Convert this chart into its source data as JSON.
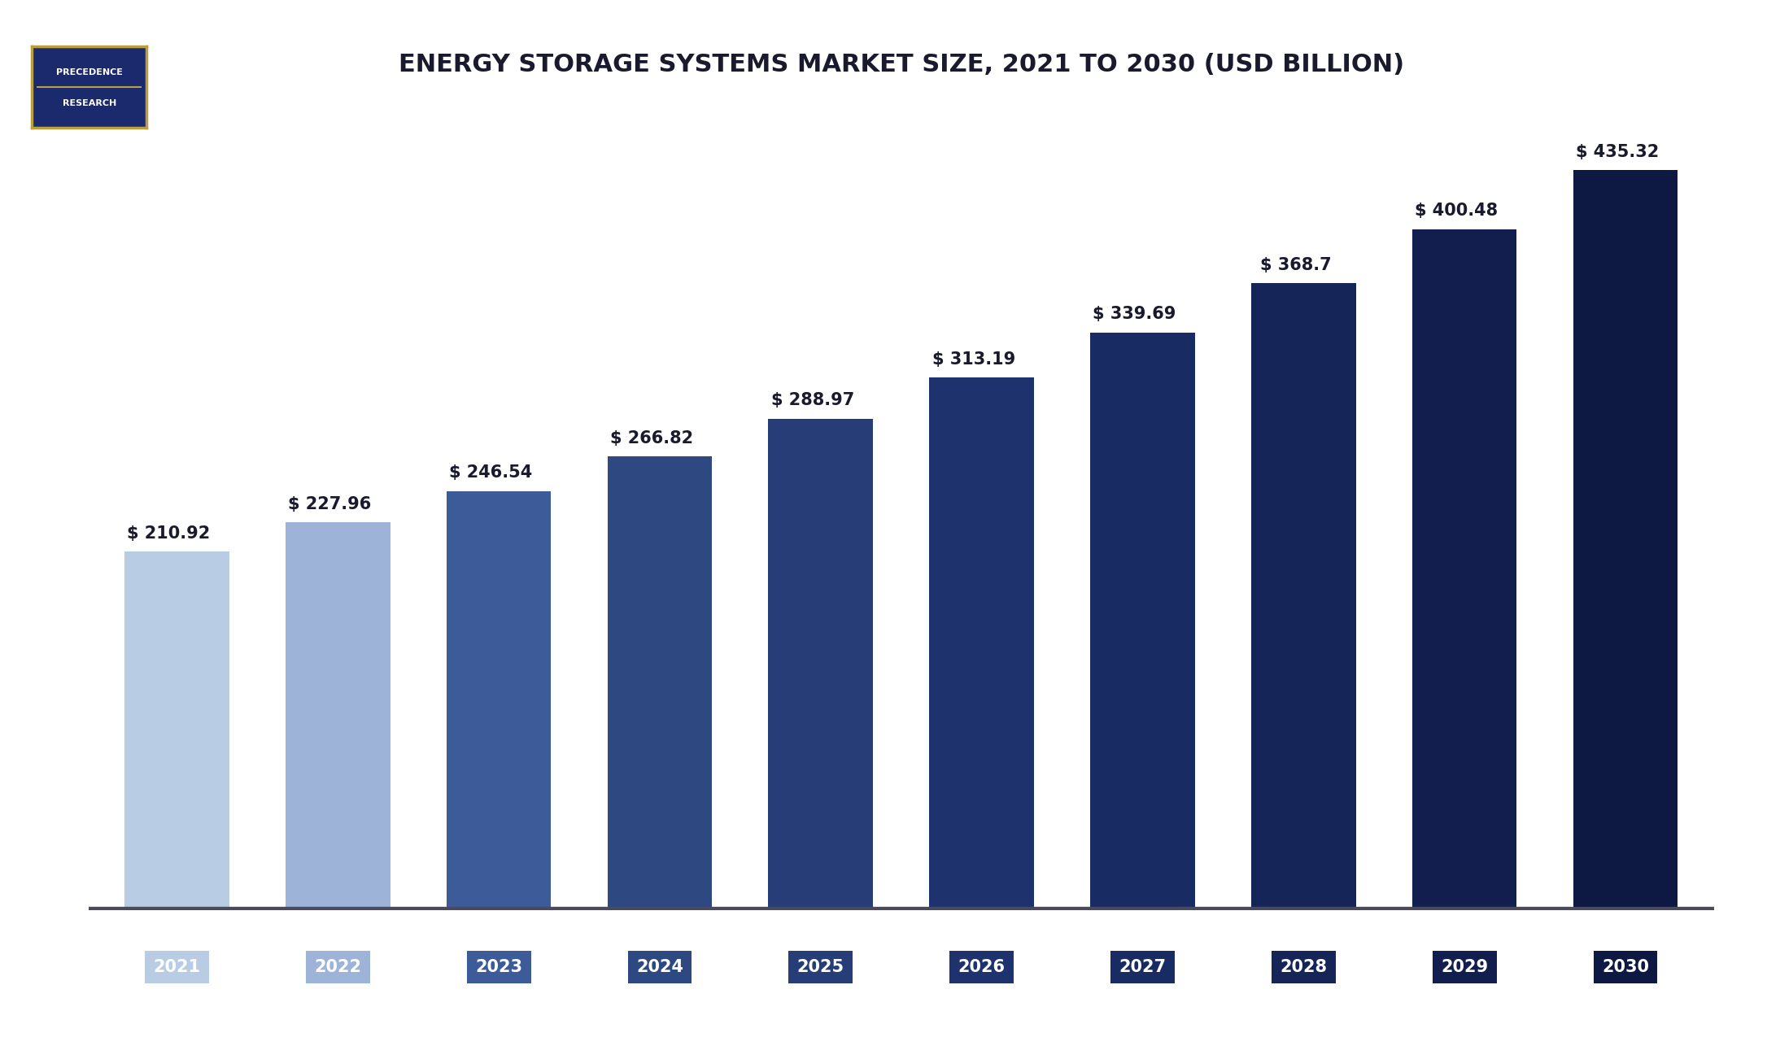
{
  "title": "ENERGY STORAGE SYSTEMS MARKET SIZE, 2021 TO 2030 (USD BILLION)",
  "years": [
    "2021",
    "2022",
    "2023",
    "2024",
    "2025",
    "2026",
    "2027",
    "2028",
    "2029",
    "2030"
  ],
  "values": [
    210.92,
    227.96,
    246.54,
    266.82,
    288.97,
    313.19,
    339.69,
    368.7,
    400.48,
    435.32
  ],
  "labels": [
    "$ 210.92",
    "$ 227.96",
    "$ 246.54",
    "$ 266.82",
    "$ 288.97",
    "$ 313.19",
    "$ 339.69",
    "$ 368.7",
    "$ 400.48",
    "$ 435.32"
  ],
  "bar_colors": [
    "#b8cce4",
    "#9eb3d8",
    "#3d5a99",
    "#2e4882",
    "#263d78",
    "#1e326e",
    "#192b63",
    "#152558",
    "#111e4e",
    "#0d1843"
  ],
  "tick_colors": [
    "#b8cce4",
    "#9eb3d8",
    "#3d5a99",
    "#2e4882",
    "#263d78",
    "#1e326e",
    "#192b63",
    "#152558",
    "#111e4e",
    "#0d1843"
  ],
  "background_color": "#ffffff",
  "plot_bg_color": "#ffffff",
  "ylim": [
    0,
    480
  ],
  "grid_color": "#dddddd",
  "title_color": "#1a1a2e",
  "label_fontsize": 15,
  "tick_fontsize": 15,
  "title_fontsize": 22,
  "logo_top_color": "#1a2a6c",
  "logo_bottom_color": "#1a2a6c",
  "logo_border_color": "#b8a040",
  "logo_divider_color": "#b8a040"
}
